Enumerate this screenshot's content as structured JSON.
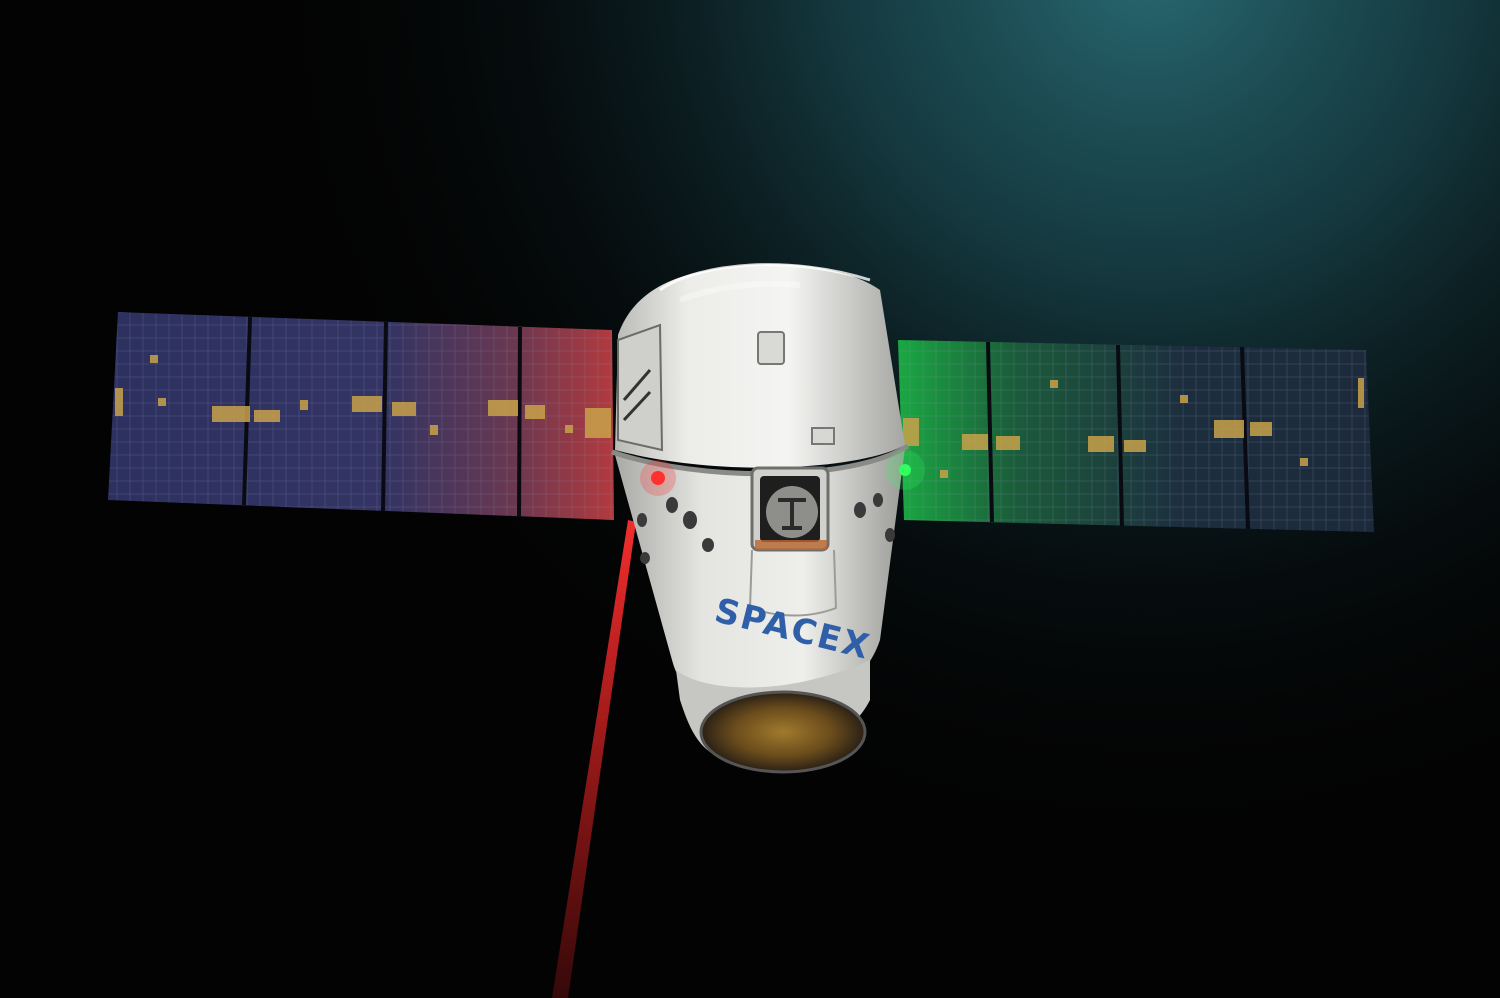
{
  "scene": {
    "subject": "spacecraft-with-solar-arrays",
    "logo": {
      "text": "SPACEX",
      "color": "#2f5fa8"
    },
    "colors": {
      "space": "#030303",
      "earth_glow": "#1f5a62",
      "hull": "#e9e9e6",
      "hull_shadow": "#9b9b98",
      "panel_left": "#2a2f55",
      "panel_right": "#1b2a38",
      "panel_tint_red": "#a8333a",
      "panel_tint_green": "#1fbf4a",
      "gold_patch": "#c8a24a",
      "laser": "#ff2a2a",
      "nav_light_red": "#ff3030",
      "nav_light_green": "#30ff60"
    }
  }
}
